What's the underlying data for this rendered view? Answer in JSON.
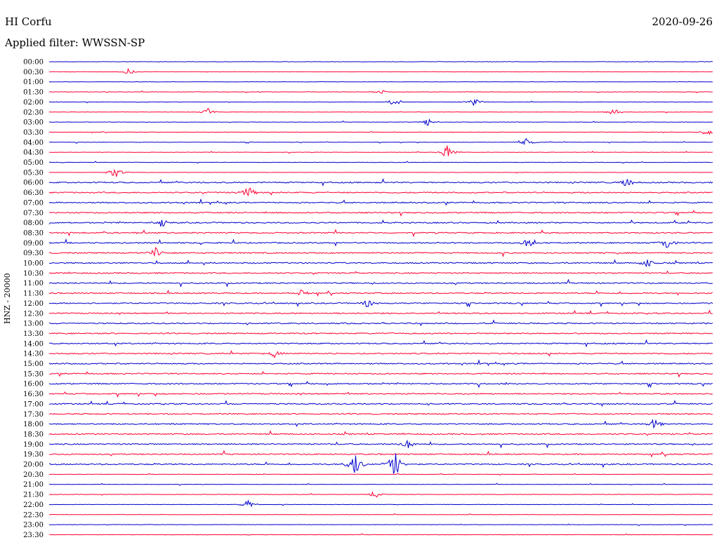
{
  "header": {
    "station": "HI Corfu",
    "date": "2020-09-26",
    "filter": "Applied filter: WWSSN-SP"
  },
  "chart_data": {
    "type": "line",
    "title": "HI Corfu",
    "ylabel": "HNZ - 20000",
    "date": "2020-09-26",
    "filter": "WWSSN-SP",
    "tick_labels": [
      "00:00",
      "00:30",
      "01:00",
      "01:30",
      "02:00",
      "02:30",
      "03:00",
      "03:30",
      "04:00",
      "04:30",
      "05:00",
      "05:30",
      "06:00",
      "06:30",
      "07:00",
      "07:30",
      "08:00",
      "08:30",
      "09:00",
      "09:30",
      "10:00",
      "10:30",
      "11:00",
      "11:30",
      "12:00",
      "12:30",
      "13:00",
      "13:30",
      "14:00",
      "14:30",
      "15:00",
      "15:30",
      "16:00",
      "16:30",
      "17:00",
      "17:30",
      "18:00",
      "18:30",
      "19:00",
      "19:30",
      "20:00",
      "20:30",
      "21:00",
      "21:30",
      "22:00",
      "22:30",
      "23:00",
      "23:30"
    ],
    "colors": {
      "even": "#0000cc",
      "odd": "#ff0033"
    },
    "series": [],
    "events": [
      {
        "row": 1,
        "pos": 0.12,
        "amp": 5
      },
      {
        "row": 3,
        "pos": 0.5,
        "amp": 4
      },
      {
        "row": 4,
        "pos": 0.52,
        "amp": 7
      },
      {
        "row": 4,
        "pos": 0.64,
        "amp": 6
      },
      {
        "row": 5,
        "pos": 0.24,
        "amp": 6
      },
      {
        "row": 5,
        "pos": 0.85,
        "amp": 6
      },
      {
        "row": 6,
        "pos": 0.57,
        "amp": 6
      },
      {
        "row": 7,
        "pos": 0.99,
        "amp": 6
      },
      {
        "row": 8,
        "pos": 0.72,
        "amp": 7
      },
      {
        "row": 9,
        "pos": 0.6,
        "amp": 12
      },
      {
        "row": 11,
        "pos": 0.1,
        "amp": 10
      },
      {
        "row": 12,
        "pos": 0.87,
        "amp": 9
      },
      {
        "row": 13,
        "pos": 0.3,
        "amp": 10
      },
      {
        "row": 16,
        "pos": 0.17,
        "amp": 8
      },
      {
        "row": 18,
        "pos": 0.72,
        "amp": 8
      },
      {
        "row": 18,
        "pos": 0.93,
        "amp": 10
      },
      {
        "row": 19,
        "pos": 0.16,
        "amp": 8
      },
      {
        "row": 20,
        "pos": 0.9,
        "amp": 8
      },
      {
        "row": 23,
        "pos": 0.38,
        "amp": 6
      },
      {
        "row": 24,
        "pos": 0.48,
        "amp": 7
      },
      {
        "row": 29,
        "pos": 0.34,
        "amp": 7
      },
      {
        "row": 36,
        "pos": 0.91,
        "amp": 8
      },
      {
        "row": 38,
        "pos": 0.54,
        "amp": 8
      },
      {
        "row": 40,
        "pos": 0.46,
        "amp": 22
      },
      {
        "row": 40,
        "pos": 0.52,
        "amp": 25
      },
      {
        "row": 43,
        "pos": 0.49,
        "amp": 6
      },
      {
        "row": 44,
        "pos": 0.3,
        "amp": 7
      }
    ]
  }
}
